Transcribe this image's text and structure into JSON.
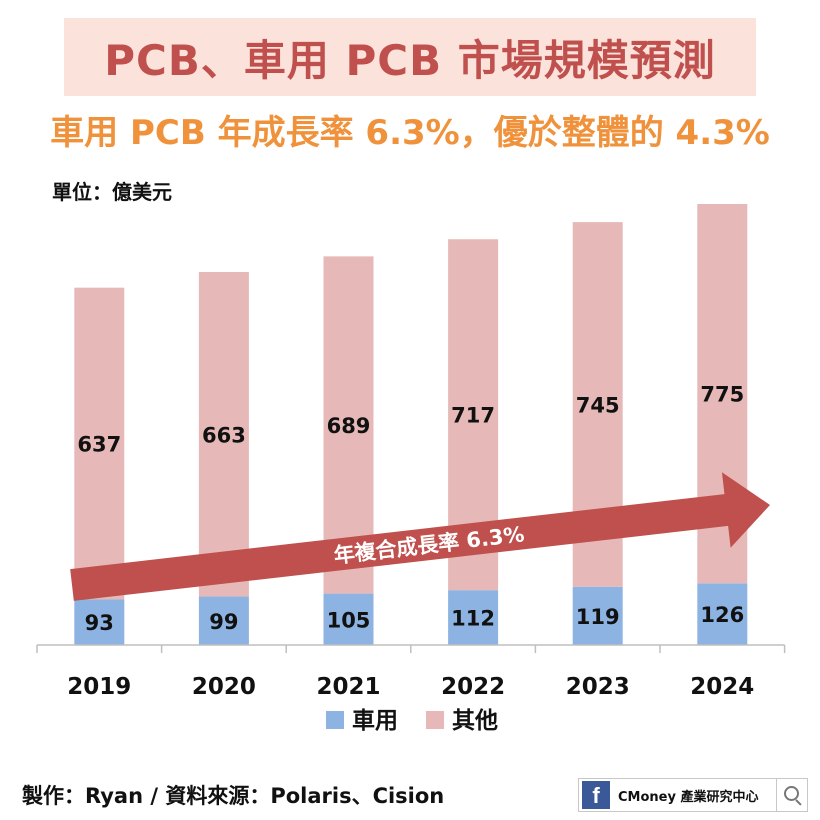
{
  "title": "PCB、車用 PCB 市場規模預測",
  "subtitle": "車用 PCB 年成長率 6.3%，優於整體的 4.3%",
  "unit_label": "單位：億美元",
  "footer": {
    "source": "製作：Ryan / 資料來源：Polaris、Cision",
    "brand": "CMoney 產業研究中心",
    "fb_letter": "f"
  },
  "colors": {
    "title": "#c0504d",
    "subtitle": "#f0923b",
    "auto": "#8db3e2",
    "other": "#e6b9b8",
    "arrow": "#c0504d"
  },
  "chart_data": {
    "type": "bar",
    "stacked": true,
    "title": "PCB、車用 PCB 市場規模預測",
    "categories": [
      "2019",
      "2020",
      "2021",
      "2022",
      "2023",
      "2024"
    ],
    "series": [
      {
        "name": "車用",
        "values": [
          93,
          99,
          105,
          112,
          119,
          126
        ]
      },
      {
        "name": "其他",
        "values": [
          637,
          663,
          689,
          717,
          745,
          775
        ]
      }
    ],
    "ylim": [
      0,
      950
    ],
    "grid": false,
    "legend": "bottom-center",
    "annotation": "年複合成長率 6.3%"
  }
}
